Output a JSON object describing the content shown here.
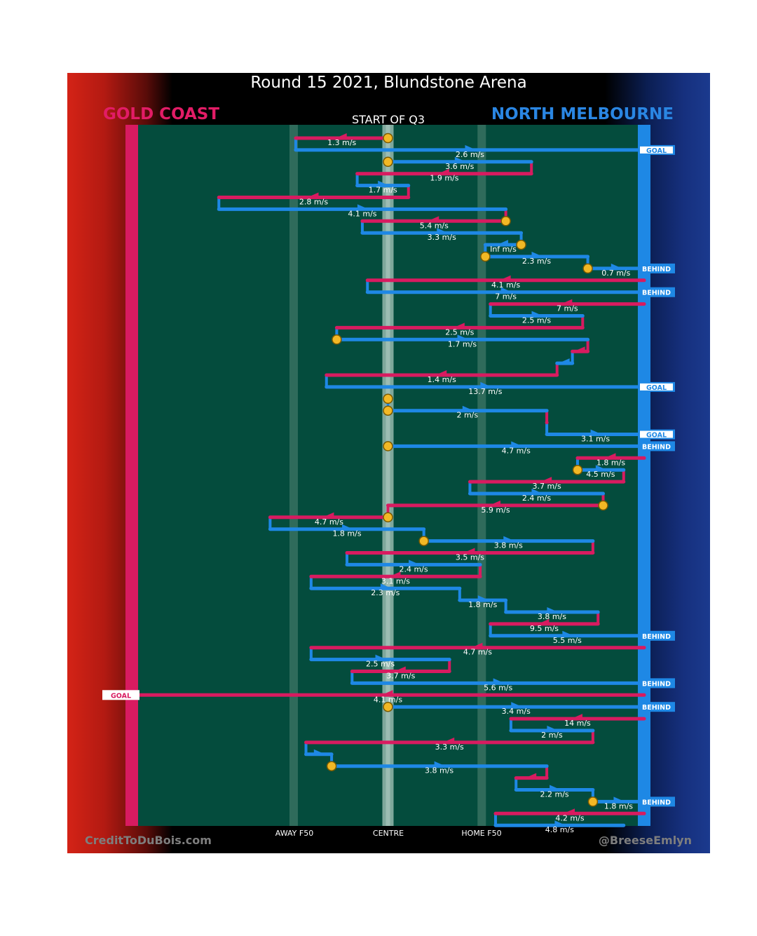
{
  "title": "Round 15 2021, Blundstone Arena",
  "teams": {
    "home": "GOLD COAST",
    "away": "NORTH MELBOURNE"
  },
  "start_label": "START OF Q3",
  "credits": {
    "left": "CreditToDuBois.com",
    "right": "@BreeseEmlyn"
  },
  "colors": {
    "home": "#d81b60",
    "away": "#1e88e5",
    "field": "#044c3d",
    "stoppage": "#f2b825"
  },
  "chart_data": {
    "type": "chain",
    "title": "Round 15 2021, Blundstone Arena",
    "xlabels": [
      "AWAY F50",
      "CENTRE",
      "HOME F50"
    ],
    "xlim": [
      0,
      100
    ],
    "x_ticks": [
      31.6,
      50,
      68.3
    ],
    "segments": [
      {
        "team": "home",
        "y": 0,
        "x1": 50,
        "x2": 32,
        "label": "1.3 m/s"
      },
      {
        "team": "away",
        "y": 1,
        "x1": 32,
        "x2": 100,
        "label": "2.6 m/s",
        "end": "GOAL"
      },
      {
        "team": "away",
        "y": 2,
        "x1": 50,
        "x2": 78,
        "label": "3.6 m/s"
      },
      {
        "team": "home",
        "y": 3,
        "x1": 78,
        "x2": 44,
        "label": "1.9 m/s"
      },
      {
        "team": "away",
        "y": 4,
        "x1": 44,
        "x2": 54,
        "label": "1.7 m/s"
      },
      {
        "team": "home",
        "y": 5,
        "x1": 54,
        "x2": 17,
        "label": "2.8 m/s"
      },
      {
        "team": "away",
        "y": 6,
        "x1": 17,
        "x2": 73,
        "label": "4.1 m/s"
      },
      {
        "team": "home",
        "y": 7,
        "x1": 73,
        "x2": 45,
        "label": "5.4 m/s"
      },
      {
        "team": "away",
        "y": 8,
        "x1": 45,
        "x2": 76,
        "label": "3.3 m/s"
      },
      {
        "team": "away",
        "y": 9,
        "x1": 76,
        "x2": 69,
        "label": "Inf m/s"
      },
      {
        "team": "away",
        "y": 10,
        "x1": 69,
        "x2": 89,
        "label": "2.3 m/s"
      },
      {
        "team": "away",
        "y": 11,
        "x1": 89,
        "x2": 100,
        "label": "0.7 m/s",
        "end": "BEHIND"
      },
      {
        "team": "home",
        "y": 12,
        "x1": 100,
        "x2": 46,
        "label": "4.1 m/s"
      },
      {
        "team": "away",
        "y": 13,
        "x1": 46,
        "x2": 100,
        "label": "7 m/s",
        "end": "BEHIND"
      },
      {
        "team": "home",
        "y": 14,
        "x1": 100,
        "x2": 70,
        "label": "7 m/s"
      },
      {
        "team": "away",
        "y": 15,
        "x1": 70,
        "x2": 88,
        "label": "2.5 m/s"
      },
      {
        "team": "home",
        "y": 16,
        "x1": 88,
        "x2": 40,
        "label": "2.5 m/s"
      },
      {
        "team": "away",
        "y": 17,
        "x1": 40,
        "x2": 89,
        "label": "1.7 m/s"
      },
      {
        "team": "home",
        "y": 18,
        "x1": 89,
        "x2": 86,
        "label": ""
      },
      {
        "team": "away",
        "y": 19,
        "x1": 86,
        "x2": 83,
        "label": ""
      },
      {
        "team": "home",
        "y": 20,
        "x1": 83,
        "x2": 38,
        "label": "1.4 m/s"
      },
      {
        "team": "away",
        "y": 21,
        "x1": 38,
        "x2": 100,
        "label": "13.7 m/s",
        "end": "GOAL"
      },
      {
        "team": "home",
        "y": 22,
        "x1": 50,
        "x2": 50,
        "label": ""
      },
      {
        "team": "away",
        "y": 23,
        "x1": 50,
        "x2": 81,
        "label": "2 m/s"
      },
      {
        "team": "home",
        "y": 24,
        "x1": 81,
        "x2": 81,
        "label": ""
      },
      {
        "team": "away",
        "y": 25,
        "x1": 81,
        "x2": 100,
        "label": "3.1 m/s",
        "end": "GOAL"
      },
      {
        "team": "away",
        "y": 26,
        "x1": 50,
        "x2": 100,
        "label": "4.7 m/s",
        "end": "BEHIND"
      },
      {
        "team": "home",
        "y": 27,
        "x1": 100,
        "x2": 87,
        "label": "1.8 m/s"
      },
      {
        "team": "away",
        "y": 28,
        "x1": 87,
        "x2": 96,
        "label": "4.5 m/s"
      },
      {
        "team": "home",
        "y": 29,
        "x1": 96,
        "x2": 66,
        "label": "3.7 m/s"
      },
      {
        "team": "away",
        "y": 30,
        "x1": 66,
        "x2": 92,
        "label": "2.4 m/s"
      },
      {
        "team": "home",
        "y": 31,
        "x1": 92,
        "x2": 50,
        "label": "5.9 m/s"
      },
      {
        "team": "home",
        "y": 32,
        "x1": 50,
        "x2": 27,
        "label": "4.7 m/s"
      },
      {
        "team": "away",
        "y": 33,
        "x1": 27,
        "x2": 57,
        "label": "1.8 m/s"
      },
      {
        "team": "away",
        "y": 34,
        "x1": 57,
        "x2": 90,
        "label": "3.8 m/s"
      },
      {
        "team": "home",
        "y": 35,
        "x1": 90,
        "x2": 42,
        "label": "3.5 m/s"
      },
      {
        "team": "away",
        "y": 36,
        "x1": 42,
        "x2": 68,
        "label": "2.4 m/s"
      },
      {
        "team": "home",
        "y": 37,
        "x1": 68,
        "x2": 35,
        "label": "3.1 m/s"
      },
      {
        "team": "away",
        "y": 38,
        "x1": 35,
        "x2": 64,
        "label": "2.3 m/s"
      },
      {
        "team": "away",
        "y": 39,
        "x1": 64,
        "x2": 73,
        "label": "1.8 m/s"
      },
      {
        "team": "away",
        "y": 40,
        "x1": 73,
        "x2": 91,
        "label": "3.8 m/s"
      },
      {
        "team": "home",
        "y": 41,
        "x1": 91,
        "x2": 70,
        "label": "9.5 m/s"
      },
      {
        "team": "away",
        "y": 42,
        "x1": 70,
        "x2": 100,
        "label": "5.5 m/s",
        "end": "BEHIND"
      },
      {
        "team": "home",
        "y": 43,
        "x1": 100,
        "x2": 35,
        "label": "4.7 m/s"
      },
      {
        "team": "away",
        "y": 44,
        "x1": 35,
        "x2": 62,
        "label": "2.5 m/s"
      },
      {
        "team": "home",
        "y": 45,
        "x1": 62,
        "x2": 43,
        "label": "3.7 m/s"
      },
      {
        "team": "away",
        "y": 46,
        "x1": 43,
        "x2": 100,
        "label": "5.6 m/s",
        "end": "BEHIND"
      },
      {
        "team": "home",
        "y": 47,
        "x1": 100,
        "x2": 0,
        "label": "4.1 m/s",
        "end": "GOAL"
      },
      {
        "team": "away",
        "y": 48,
        "x1": 50,
        "x2": 100,
        "label": "3.4 m/s",
        "end": "BEHIND"
      },
      {
        "team": "home",
        "y": 49,
        "x1": 100,
        "x2": 74,
        "label": "14 m/s"
      },
      {
        "team": "away",
        "y": 50,
        "x1": 74,
        "x2": 90,
        "label": "2 m/s"
      },
      {
        "team": "home",
        "y": 51,
        "x1": 90,
        "x2": 34,
        "label": "3.3 m/s"
      },
      {
        "team": "away",
        "y": 52,
        "x1": 34,
        "x2": 39,
        "label": ""
      },
      {
        "team": "away",
        "y": 53,
        "x1": 39,
        "x2": 81,
        "label": "3.8 m/s"
      },
      {
        "team": "home",
        "y": 54,
        "x1": 81,
        "x2": 75,
        "label": ""
      },
      {
        "team": "away",
        "y": 55,
        "x1": 75,
        "x2": 90,
        "label": "2.2 m/s"
      },
      {
        "team": "away",
        "y": 56,
        "x1": 90,
        "x2": 100,
        "label": "1.8 m/s",
        "end": "BEHIND"
      },
      {
        "team": "home",
        "y": 57,
        "x1": 100,
        "x2": 71,
        "label": "4.2 m/s"
      },
      {
        "team": "away",
        "y": 58,
        "x1": 71,
        "x2": 96,
        "label": "4.8 m/s"
      }
    ],
    "stoppages": [
      {
        "y": 0,
        "x": 50
      },
      {
        "y": 2,
        "x": 50
      },
      {
        "y": 7,
        "x": 73
      },
      {
        "y": 9,
        "x": 76
      },
      {
        "y": 10,
        "x": 69
      },
      {
        "y": 11,
        "x": 89
      },
      {
        "y": 17,
        "x": 40
      },
      {
        "y": 22,
        "x": 50
      },
      {
        "y": 23,
        "x": 50
      },
      {
        "y": 26,
        "x": 50
      },
      {
        "y": 28,
        "x": 87
      },
      {
        "y": 31,
        "x": 92
      },
      {
        "y": 32,
        "x": 50
      },
      {
        "y": 34,
        "x": 57
      },
      {
        "y": 48,
        "x": 50
      },
      {
        "y": 53,
        "x": 39
      },
      {
        "y": 56,
        "x": 90
      }
    ]
  }
}
